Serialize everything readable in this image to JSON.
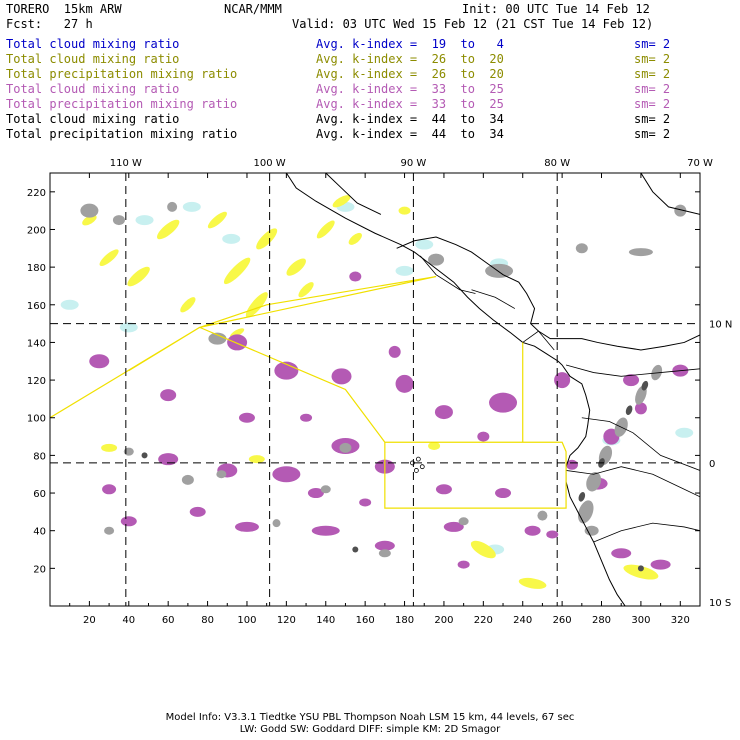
{
  "header": {
    "model": "TORERO  15km ARW",
    "org": "NCAR/MMM",
    "init": "Init: 00 UTC Tue 14 Feb 12",
    "fcst": "Fcst:   27 h",
    "valid": "Valid: 03 UTC Wed 15 Feb 12 (21 CST Tue 14 Feb 12)"
  },
  "legend": [
    {
      "field": "Total cloud mixing ratio",
      "kindex": "Avg. k-index =  19  to   4",
      "sm": "sm= 2",
      "color": "#0000c8"
    },
    {
      "field": "Total cloud mixing ratio",
      "kindex": "Avg. k-index =  26  to  20",
      "sm": "sm= 2",
      "color": "#8c8c00"
    },
    {
      "field": "Total precipitation mixing ratio",
      "kindex": "Avg. k-index =  26  to  20",
      "sm": "sm= 2",
      "color": "#8c8c00"
    },
    {
      "field": "Total cloud mixing ratio",
      "kindex": "Avg. k-index =  33  to  25",
      "sm": "sm= 2",
      "color": "#b45ab4"
    },
    {
      "field": "Total precipitation mixing ratio",
      "kindex": "Avg. k-index =  33  to  25",
      "sm": "sm= 2",
      "color": "#b45ab4"
    },
    {
      "field": "Total cloud mixing ratio",
      "kindex": "Avg. k-index =  44  to  34",
      "sm": "sm= 2",
      "color": "#000000"
    },
    {
      "field": "Total precipitation mixing ratio",
      "kindex": "Avg. k-index =  44  to  34",
      "sm": "sm= 2",
      "color": "#000000"
    }
  ],
  "map": {
    "x_ticks": [
      "20",
      "40",
      "60",
      "80",
      "100",
      "120",
      "140",
      "160",
      "180",
      "200",
      "220",
      "240",
      "260",
      "280",
      "300",
      "320"
    ],
    "y_ticks": [
      "220",
      "200",
      "180",
      "160",
      "140",
      "120",
      "100",
      "80",
      "60",
      "40",
      "20"
    ],
    "lon_labels": [
      "110 W",
      "100 W",
      "90 W",
      "80 W",
      "70 W"
    ],
    "lat_labels": [
      "10 N",
      "0",
      "10 S"
    ],
    "colors": {
      "cyan": "#c8f0f0",
      "yellow": "#f8f848",
      "magenta": "#b45ab4",
      "gray": "#a0a0a0",
      "dark": "#505050",
      "track": "#f0e000",
      "coast": "#000000"
    }
  },
  "footer": {
    "line1": "Model Info: V3.3.1   Tiedtke YSU PBL  Thompson    Noah LSM  15 km,   44 levels,   67 sec",
    "line2": "LW: Godd SW: Goddard DIFF: simple KM: 2D Smagor"
  }
}
